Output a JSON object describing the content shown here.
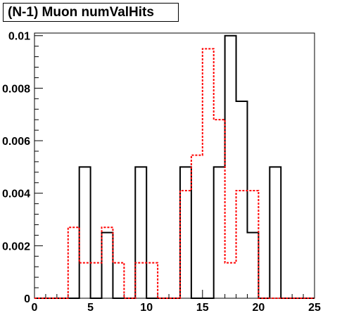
{
  "title": "(N-1) Muon numValHits",
  "chart_data": {
    "type": "histogram",
    "title": "(N-1) Muon numValHits",
    "xlabel": "",
    "ylabel": "",
    "xlim": [
      0,
      25
    ],
    "ylim": [
      0,
      0.0101
    ],
    "bin_width": 1,
    "x_ticks": [
      0,
      5,
      10,
      15,
      20,
      25
    ],
    "x_tick_labels": [
      "0",
      "5",
      "10",
      "15",
      "20",
      "25"
    ],
    "y_ticks": [
      0,
      0.002,
      0.004,
      0.006,
      0.008,
      0.01
    ],
    "y_tick_labels": [
      "0",
      "0.002",
      "0.004",
      "0.006",
      "0.008",
      "0.01"
    ],
    "grid": false,
    "legend": "none",
    "series": [
      {
        "style": "solid",
        "color": "#000000",
        "bin_edges": [
          0,
          1,
          2,
          3,
          4,
          5,
          6,
          7,
          8,
          9,
          10,
          11,
          12,
          13,
          14,
          15,
          16,
          17,
          18,
          19,
          20,
          21,
          22,
          23,
          24,
          25
        ],
        "values": [
          0,
          0,
          0,
          0,
          0.005,
          0,
          0.0025,
          0,
          0,
          0.005,
          0,
          0,
          0,
          0.005,
          0,
          0,
          0.005,
          0.01,
          0.0075,
          0.0025,
          0,
          0.005,
          0,
          0,
          0
        ]
      },
      {
        "style": "dashed",
        "color": "#ff0000",
        "bin_edges": [
          0,
          1,
          2,
          3,
          4,
          5,
          6,
          7,
          8,
          9,
          10,
          11,
          12,
          13,
          14,
          15,
          16,
          17,
          18,
          19,
          20,
          21,
          22,
          23,
          24,
          25
        ],
        "values": [
          0,
          0,
          0,
          0.0027,
          0.00135,
          0.00135,
          0.0027,
          0.00135,
          0,
          0.00135,
          0.00135,
          0,
          0,
          0.0041,
          0.00545,
          0.0095,
          0.0068,
          0.00135,
          0.0041,
          0.0041,
          0,
          0,
          0,
          0,
          0
        ]
      }
    ]
  }
}
